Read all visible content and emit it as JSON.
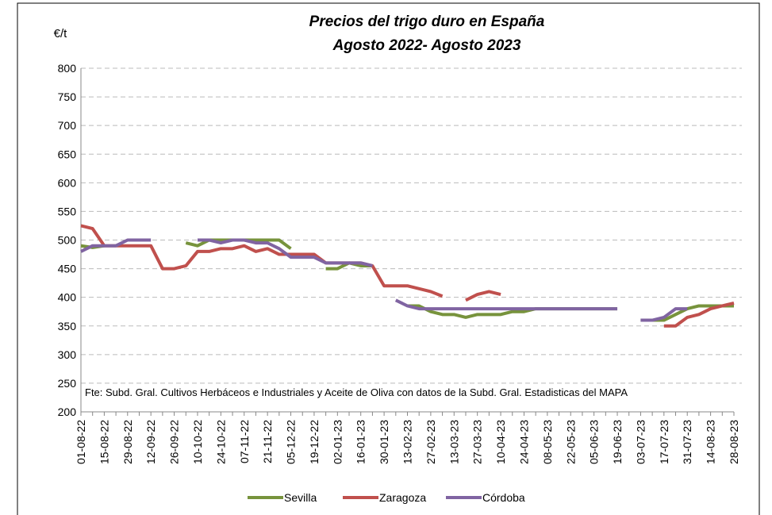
{
  "chart_data": {
    "type": "line",
    "title": "Precios del trigo duro en España",
    "subtitle": "Agosto 2022- Agosto 2023",
    "y_label": "€/t",
    "annotation": "Fte: Subd. Gral. Cultivos Herbáceos e Industriales y Aceite de Oliva con datos de la Subd. Gral. Estadisticas del MAPA",
    "categories": [
      "01-08-22",
      null,
      "15-08-22",
      null,
      "29-08-22",
      null,
      "12-09-22",
      null,
      "26-09-22",
      null,
      "10-10-22",
      null,
      "24-10-22",
      null,
      "07-11-22",
      null,
      "21-11-22",
      null,
      "05-12-22",
      null,
      "19-12-22",
      null,
      "02-01-23",
      null,
      "16-01-23",
      null,
      "30-01-23",
      null,
      "13-02-23",
      null,
      "27-02-23",
      null,
      "13-03-23",
      null,
      "27-03-23",
      null,
      "10-04-23",
      null,
      "24-04-23",
      null,
      "08-05-23",
      null,
      "22-05-23",
      null,
      "05-06-23",
      null,
      "19-06-23",
      null,
      "03-07-23",
      null,
      "17-07-23",
      null,
      "31-07-23",
      null,
      "14-08-23",
      null,
      "28-08-23"
    ],
    "series": [
      {
        "name": "Sevilla",
        "color": "#77933c",
        "values": [
          490,
          487,
          490,
          null,
          null,
          null,
          null,
          null,
          null,
          495,
          490,
          500,
          500,
          500,
          500,
          500,
          500,
          500,
          485,
          null,
          null,
          450,
          450,
          460,
          455,
          455,
          null,
          null,
          385,
          385,
          375,
          370,
          370,
          365,
          370,
          370,
          370,
          375,
          375,
          380,
          380,
          380,
          380,
          380,
          380,
          380,
          380,
          null,
          360,
          360,
          360,
          370,
          380,
          385,
          385,
          385,
          385
        ]
      },
      {
        "name": "Zaragoza",
        "color": "#c0504d",
        "values": [
          525,
          520,
          490,
          490,
          490,
          490,
          490,
          450,
          450,
          455,
          480,
          480,
          485,
          485,
          490,
          480,
          485,
          475,
          475,
          475,
          475,
          460,
          460,
          460,
          460,
          455,
          420,
          420,
          420,
          415,
          410,
          402,
          null,
          395,
          405,
          410,
          405,
          null,
          null,
          null,
          null,
          null,
          null,
          null,
          null,
          null,
          null,
          null,
          null,
          null,
          350,
          350,
          365,
          370,
          380,
          385,
          390
        ]
      },
      {
        "name": "Córdoba",
        "color": "#8064a2",
        "values": [
          480,
          490,
          490,
          490,
          500,
          500,
          500,
          null,
          null,
          null,
          500,
          500,
          495,
          500,
          500,
          495,
          495,
          485,
          470,
          470,
          470,
          460,
          460,
          460,
          460,
          455,
          null,
          395,
          385,
          380,
          380,
          380,
          380,
          380,
          380,
          380,
          380,
          380,
          380,
          380,
          380,
          380,
          380,
          380,
          380,
          380,
          380,
          null,
          360,
          360,
          365,
          380,
          380,
          null,
          null,
          null,
          null
        ]
      }
    ],
    "ylim": [
      200,
      800
    ],
    "yticks": [
      200,
      250,
      300,
      350,
      400,
      450,
      500,
      550,
      600,
      650,
      700,
      750,
      800
    ],
    "grid": true,
    "legend": "bottom"
  }
}
